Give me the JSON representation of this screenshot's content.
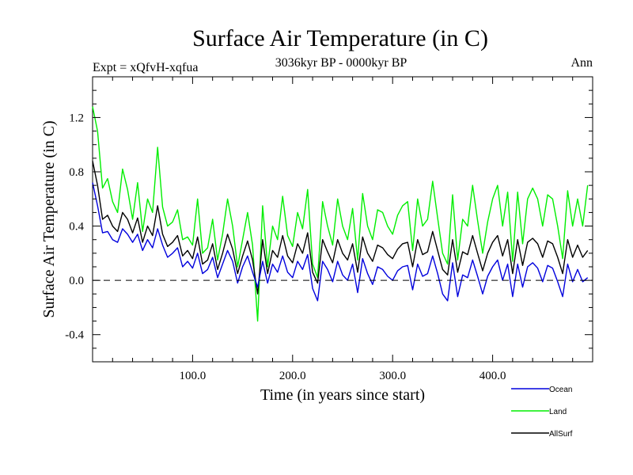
{
  "chart_data": {
    "type": "line",
    "title": "Surface Air Temperature (in C)",
    "subtitle": "3036kyr BP - 0000kyr BP",
    "experiment": "Expt = xQfvH-xqfua",
    "season": "Ann",
    "xlabel": "Time (in years since start)",
    "ylabel": "Surface Air Temperature (in C)",
    "xlim": [
      0,
      500
    ],
    "ylim": [
      -0.6,
      1.5
    ],
    "xticks": [
      100,
      200,
      300,
      400
    ],
    "xtick_labels": [
      "100.0",
      "200.0",
      "300.0",
      "400.0"
    ],
    "yticks": [
      -0.4,
      0.0,
      0.4,
      0.8,
      1.2
    ],
    "ytick_labels": [
      "-0.4",
      "0.0",
      "0.4",
      "0.8",
      "1.2"
    ],
    "zero_line": {
      "y": 0,
      "style": "dashed"
    },
    "legend_position": "bottom-right",
    "x_step": 5,
    "series": [
      {
        "name": "Land",
        "color": "#00ee00",
        "values": [
          1.28,
          1.1,
          0.68,
          0.75,
          0.58,
          0.5,
          0.82,
          0.67,
          0.45,
          0.72,
          0.36,
          0.6,
          0.5,
          0.98,
          0.54,
          0.4,
          0.43,
          0.52,
          0.3,
          0.32,
          0.26,
          0.6,
          0.2,
          0.24,
          0.45,
          0.15,
          0.34,
          0.6,
          0.4,
          0.1,
          0.3,
          0.5,
          0.26,
          -0.3,
          0.55,
          0.1,
          0.4,
          0.3,
          0.62,
          0.33,
          0.25,
          0.5,
          0.38,
          0.67,
          0.12,
          0.02,
          0.58,
          0.4,
          0.26,
          0.6,
          0.4,
          0.3,
          0.53,
          0.15,
          0.64,
          0.4,
          0.3,
          0.52,
          0.5,
          0.4,
          0.34,
          0.48,
          0.55,
          0.58,
          0.22,
          0.6,
          0.4,
          0.45,
          0.73,
          0.46,
          0.2,
          0.12,
          0.63,
          0.15,
          0.45,
          0.4,
          0.7,
          0.44,
          0.2,
          0.43,
          0.6,
          0.7,
          0.4,
          0.65,
          0.14,
          0.65,
          0.27,
          0.6,
          0.68,
          0.6,
          0.4,
          0.63,
          0.6,
          0.4,
          0.16,
          0.66,
          0.4,
          0.6,
          0.4,
          0.7
        ]
      },
      {
        "name": "AllSurf",
        "color": "#000000",
        "values": [
          0.88,
          0.7,
          0.45,
          0.48,
          0.4,
          0.36,
          0.5,
          0.45,
          0.35,
          0.46,
          0.28,
          0.4,
          0.33,
          0.55,
          0.34,
          0.25,
          0.28,
          0.33,
          0.18,
          0.22,
          0.16,
          0.32,
          0.12,
          0.15,
          0.27,
          0.08,
          0.2,
          0.34,
          0.23,
          0.05,
          0.18,
          0.29,
          0.15,
          -0.1,
          0.3,
          0.05,
          0.22,
          0.17,
          0.33,
          0.18,
          0.13,
          0.27,
          0.2,
          0.35,
          0.06,
          -0.02,
          0.3,
          0.21,
          0.13,
          0.3,
          0.2,
          0.15,
          0.27,
          0.06,
          0.32,
          0.2,
          0.14,
          0.26,
          0.24,
          0.19,
          0.16,
          0.23,
          0.27,
          0.28,
          0.1,
          0.3,
          0.19,
          0.21,
          0.36,
          0.22,
          0.08,
          0.04,
          0.3,
          0.06,
          0.21,
          0.19,
          0.33,
          0.2,
          0.07,
          0.2,
          0.28,
          0.33,
          0.18,
          0.3,
          0.05,
          0.3,
          0.11,
          0.28,
          0.31,
          0.27,
          0.17,
          0.29,
          0.27,
          0.17,
          0.05,
          0.3,
          0.17,
          0.26,
          0.17,
          0.22
        ]
      },
      {
        "name": "Ocean",
        "color": "#0000dd",
        "values": [
          0.72,
          0.55,
          0.35,
          0.36,
          0.3,
          0.28,
          0.38,
          0.34,
          0.28,
          0.34,
          0.22,
          0.3,
          0.24,
          0.38,
          0.26,
          0.17,
          0.2,
          0.24,
          0.1,
          0.14,
          0.09,
          0.2,
          0.05,
          0.08,
          0.17,
          0.02,
          0.12,
          0.22,
          0.14,
          -0.02,
          0.1,
          0.18,
          0.06,
          -0.05,
          0.14,
          -0.02,
          0.12,
          0.06,
          0.18,
          0.06,
          0.02,
          0.14,
          0.08,
          0.19,
          -0.06,
          -0.15,
          0.14,
          0.08,
          -0.01,
          0.14,
          0.04,
          0.0,
          0.12,
          -0.09,
          0.16,
          0.05,
          -0.03,
          0.1,
          0.08,
          0.03,
          0.0,
          0.07,
          0.1,
          0.11,
          -0.07,
          0.12,
          0.03,
          0.05,
          0.18,
          0.05,
          -0.1,
          -0.15,
          0.13,
          -0.12,
          0.04,
          0.02,
          0.15,
          0.03,
          -0.1,
          0.03,
          0.1,
          0.15,
          0.0,
          0.12,
          -0.12,
          0.12,
          -0.05,
          0.1,
          0.13,
          0.09,
          -0.01,
          0.11,
          0.09,
          -0.01,
          -0.12,
          0.12,
          -0.01,
          0.08,
          -0.01,
          0.02
        ]
      }
    ]
  }
}
